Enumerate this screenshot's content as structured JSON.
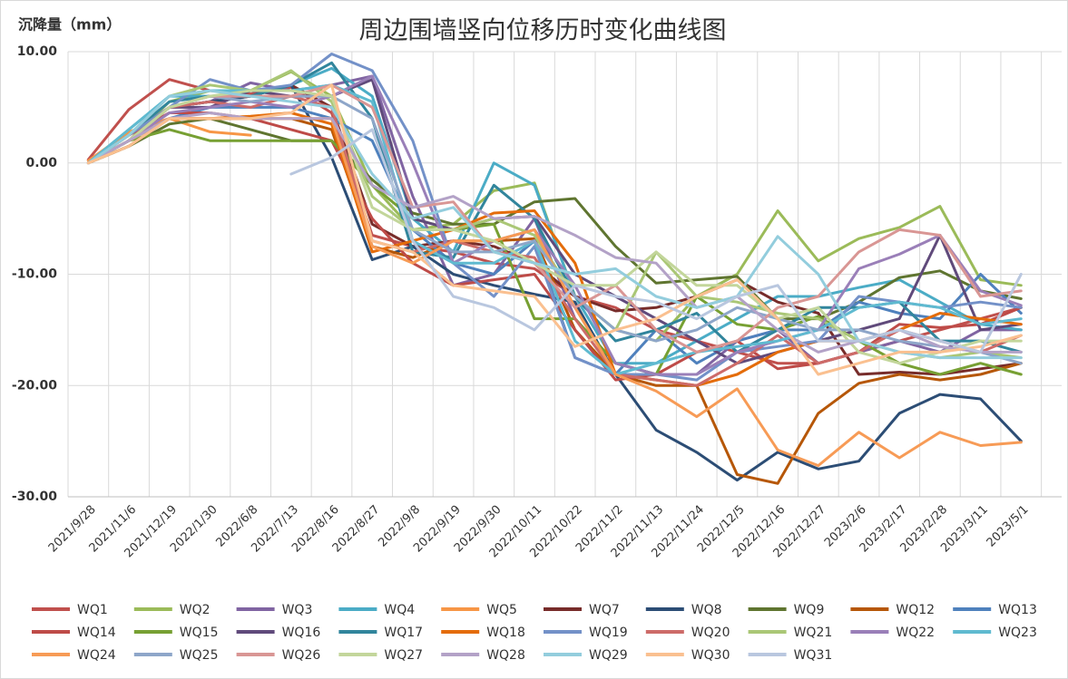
{
  "chart_data": {
    "type": "line",
    "title": "周边围墙竖向位移历时变化曲线图",
    "y_label": "沉降量（mm）",
    "categories": [
      "2021/9/28",
      "2021/11/6",
      "2021/12/19",
      "2022/1/30",
      "2022/6/8",
      "2022/7/13",
      "2022/8/16",
      "2022/8/27",
      "2022/9/8",
      "2022/9/19",
      "2022/9/30",
      "2022/10/11",
      "2022/10/22",
      "2022/11/2",
      "2022/11/13",
      "2022/11/24",
      "2022/12/5",
      "2022/12/16",
      "2022/12/27",
      "2023/2/6",
      "2023/2/17",
      "2023/2/28",
      "2023/3/11",
      "2023/5/1"
    ],
    "ylim": [
      -30,
      10
    ],
    "yticks": [
      {
        "value": -30,
        "label": "-30.00"
      },
      {
        "value": -20,
        "label": "-20.00"
      },
      {
        "value": -10,
        "label": "-10.00"
      },
      {
        "value": 0,
        "label": "0.00"
      },
      {
        "value": 10,
        "label": "10.00"
      }
    ],
    "grid": true,
    "legend": "bottom",
    "series": [
      {
        "name": "WQ1",
        "color": "#c0504d",
        "values": [
          0.3,
          4.8,
          7.5,
          6.5,
          6.2,
          6.8,
          4.5,
          -6.5,
          -7.5,
          -8,
          -9,
          -9.5,
          -12,
          -13,
          -15,
          -16,
          -17,
          -18,
          -18,
          -17,
          -16,
          -15,
          -14,
          -13
        ]
      },
      {
        "name": "WQ2",
        "color": "#9bbb59",
        "values": [
          0,
          2,
          5.5,
          6.5,
          6.5,
          8.2,
          6,
          -2,
          -6,
          -5.5,
          -2.5,
          -1.8,
          -12,
          -15,
          -16,
          -12,
          -10,
          -4.3,
          -8.8,
          -6.8,
          -5.8,
          -3.9,
          -10.5,
          -11
        ]
      },
      {
        "name": "WQ3",
        "color": "#8064a2",
        "values": [
          0,
          2.5,
          5,
          5.5,
          7.2,
          6.5,
          7,
          7.8,
          -3,
          -11,
          -10,
          -5,
          -14,
          -18,
          -19,
          -19,
          -16,
          -15,
          -18,
          -17,
          -16,
          -17,
          -15,
          -15
        ]
      },
      {
        "name": "WQ4",
        "color": "#4bacc6",
        "values": [
          0,
          3,
          6,
          6,
          6,
          7,
          8.5,
          6,
          -5,
          -8,
          0,
          -2,
          -12,
          -18,
          -18,
          -16,
          -14,
          -12,
          -12,
          -11.2,
          -10.5,
          -12.5,
          -14.5,
          -15
        ]
      },
      {
        "name": "WQ5",
        "color": "#f79646",
        "values": [
          0.2,
          2.8,
          4,
          2.8,
          2.5,
          null,
          null,
          null,
          null,
          null,
          null,
          null,
          null,
          null,
          null,
          null,
          null,
          null,
          null,
          null,
          null,
          null,
          null,
          null
        ]
      },
      {
        "name": "WQ7",
        "color": "#772c2a",
        "values": [
          0,
          2,
          5,
          5.5,
          6,
          7,
          5,
          -5.5,
          -7.5,
          -7,
          -7.5,
          -9,
          -12,
          -13.3,
          -13,
          -12,
          -10.5,
          -12.5,
          -13.5,
          -19,
          -18.8,
          -19,
          -18.5,
          -18
        ]
      },
      {
        "name": "WQ8",
        "color": "#2c4d75",
        "values": [
          0,
          2,
          5,
          5.5,
          6,
          7,
          0.5,
          -8.7,
          -7.5,
          -10,
          -11,
          -11.8,
          -12.5,
          -19,
          -24,
          -26,
          -28.5,
          -26,
          -27.5,
          -26.8,
          -22.5,
          -20.8,
          -21.2,
          -25
        ]
      },
      {
        "name": "WQ9",
        "color": "#5f7530",
        "values": [
          0,
          1.5,
          3.5,
          4,
          3,
          2,
          2,
          -1.5,
          -4.5,
          -5.5,
          -5.5,
          -3.5,
          -3.2,
          -7.5,
          -10.8,
          -10.5,
          -10.2,
          -14,
          -14,
          -12.5,
          -10.3,
          -9.7,
          -11.5,
          -12.2
        ]
      },
      {
        "name": "WQ12",
        "color": "#b65708",
        "values": [
          0,
          1.5,
          4,
          4,
          4,
          4,
          3,
          -7.5,
          -8.5,
          -7,
          -7,
          -6.8,
          -15,
          -19,
          -20,
          -20,
          -28,
          -28.8,
          -22.5,
          -19.8,
          -19,
          -19.5,
          -19,
          -18
        ]
      },
      {
        "name": "WQ13",
        "color": "#4f81bd",
        "values": [
          0,
          2,
          4,
          5,
          5,
          5,
          4,
          2,
          -6,
          -9,
          -10,
          -7,
          -17.5,
          -19,
          -15,
          -18,
          -16,
          -15,
          -15,
          -12.5,
          -13.5,
          -14,
          -10,
          -13.5
        ]
      },
      {
        "name": "WQ14",
        "color": "#be4b48",
        "values": [
          0,
          2.5,
          4.5,
          4.5,
          4,
          3,
          2,
          -5,
          -9,
          -11,
          -10.5,
          -10,
          -15,
          -19.5,
          -19,
          -17,
          -16,
          -18.5,
          -18,
          -17,
          -14.5,
          -14.8,
          -14.5,
          -13
        ]
      },
      {
        "name": "WQ15",
        "color": "#77a033",
        "values": [
          0,
          2,
          3,
          2,
          2,
          2,
          2,
          -2,
          -5,
          -6,
          -5.5,
          -14,
          -14,
          -18,
          -19,
          -12,
          -14.5,
          -15,
          -13.8,
          -16,
          -18,
          -19,
          -18,
          -19
        ]
      },
      {
        "name": "WQ16",
        "color": "#604a7b",
        "values": [
          0,
          2,
          5,
          5,
          6.5,
          6,
          6,
          7.5,
          -5,
          -6,
          -5,
          -4.8,
          -10,
          -12,
          -14,
          -16,
          -18,
          -17,
          -16,
          -15,
          -14,
          -6.5,
          -15,
          -14.5
        ]
      },
      {
        "name": "WQ17",
        "color": "#31859c",
        "values": [
          0,
          2.5,
          5.5,
          6,
          6,
          7,
          9,
          4,
          -8,
          -8.5,
          -2,
          -5,
          -12,
          -16,
          -15,
          -13.5,
          -17,
          -15,
          -13,
          -13,
          -12.5,
          -16,
          -16,
          -17
        ]
      },
      {
        "name": "WQ18",
        "color": "#e46c0a",
        "values": [
          0,
          2,
          4,
          4,
          4.2,
          4.5,
          3.5,
          -8,
          -7,
          -6,
          -4.5,
          -4.3,
          -9,
          -19,
          -19.5,
          -20,
          -19,
          -17,
          -16,
          -16,
          -15,
          -13.5,
          -14,
          -14.5
        ]
      },
      {
        "name": "WQ19",
        "color": "#7391c8",
        "values": [
          0,
          2.5,
          5,
          7.5,
          6.5,
          7,
          9.8,
          8.3,
          2,
          -9,
          -12,
          -7.5,
          -17.5,
          -19,
          -19,
          -19.5,
          -17,
          -16.5,
          -16,
          -12,
          -12.5,
          -13,
          -12.5,
          -13
        ]
      },
      {
        "name": "WQ20",
        "color": "#cd6b68",
        "values": [
          0,
          2,
          5,
          5.5,
          5,
          6,
          5,
          -7,
          -8,
          -7,
          -8,
          -8.5,
          -14,
          -19,
          -19.5,
          -20,
          -18,
          -15.5,
          -18,
          -17,
          -15,
          -16,
          -17,
          -15.5
        ]
      },
      {
        "name": "WQ21",
        "color": "#aac776",
        "values": [
          0,
          2.5,
          6,
          7,
          6.5,
          8.3,
          5.5,
          -3,
          -6,
          -6,
          -5,
          -6.5,
          -12,
          -15,
          -8,
          -12,
          -12.5,
          -13.5,
          -14,
          -16,
          -17,
          -17.5,
          -17,
          -17.5
        ]
      },
      {
        "name": "WQ22",
        "color": "#9a7fb8",
        "values": [
          0,
          2,
          4.5,
          5,
          5.5,
          5,
          6,
          7.8,
          0,
          -9,
          -7,
          -6,
          -11,
          -18,
          -19,
          -19,
          -17,
          -16,
          -15,
          -9.5,
          -8.2,
          -6.5,
          -11.5,
          -12.8
        ]
      },
      {
        "name": "WQ23",
        "color": "#5fbad0",
        "values": [
          0,
          3,
          6,
          6.5,
          6.5,
          6.5,
          7,
          5.5,
          -7,
          -9,
          -9,
          -7,
          -16,
          -19,
          -18,
          -17,
          -16.5,
          -16,
          -15,
          -13,
          -12.5,
          -13,
          -14.5,
          -14
        ]
      },
      {
        "name": "WQ24",
        "color": "#f79b56",
        "values": [
          0,
          2,
          4,
          4,
          4,
          4,
          4,
          -7.5,
          -9,
          -7,
          -7,
          -6,
          -13,
          -19,
          -20.5,
          -22.8,
          -20.3,
          -25.8,
          -27.2,
          -24.2,
          -26.5,
          -24.2,
          -25.4,
          -25.1
        ]
      },
      {
        "name": "WQ25",
        "color": "#8ea6c9",
        "values": [
          0,
          2,
          5,
          6,
          5.5,
          6,
          6,
          4,
          -6,
          -8,
          -8,
          -7,
          -12,
          -15,
          -16,
          -15,
          -13,
          -14,
          -15,
          -15,
          -16,
          -16.5,
          -17,
          -18
        ]
      },
      {
        "name": "WQ26",
        "color": "#d99694",
        "values": [
          0,
          2,
          5,
          6,
          6,
          6,
          7,
          5,
          -4,
          -3.5,
          -8,
          -9,
          -13,
          -11,
          -15,
          -17,
          -16,
          -13,
          -12,
          -8,
          -6,
          -6.5,
          -12,
          -11.5
        ]
      },
      {
        "name": "WQ27",
        "color": "#c3d69b",
        "values": [
          0,
          2,
          5,
          6,
          6.5,
          6.5,
          6,
          -4,
          -6,
          -6,
          -7,
          -9,
          -11,
          -11,
          -8,
          -11,
          -11,
          -14,
          -13,
          -17,
          -18,
          -17,
          -16,
          -16
        ]
      },
      {
        "name": "WQ28",
        "color": "#b3a2c7",
        "values": [
          0,
          2,
          4,
          4.5,
          4,
          4,
          4,
          -2,
          -4,
          -3,
          -5,
          -4.8,
          -6.5,
          -8.5,
          -9,
          -13,
          -12,
          -15,
          -17,
          -16,
          -15,
          -16.5,
          -17,
          -17
        ]
      },
      {
        "name": "WQ29",
        "color": "#93cddd",
        "values": [
          0,
          2.5,
          6,
          6.5,
          6,
          5.5,
          5,
          -1,
          -5,
          -4,
          -8,
          -9,
          -10,
          -9.5,
          -12,
          -13,
          -12,
          -6.6,
          -10,
          -16,
          -17,
          -17.5,
          -17.5,
          -17.5
        ]
      },
      {
        "name": "WQ30",
        "color": "#fac090",
        "values": [
          0,
          1.5,
          4,
          4,
          4,
          4.5,
          7,
          -7,
          -8,
          -11,
          -11.5,
          -12,
          -16.5,
          -15,
          -14,
          -12,
          -10.5,
          -14,
          -19,
          -18,
          -17,
          -17,
          -16.5,
          -15.5
        ]
      },
      {
        "name": "WQ31",
        "color": "#b9c7df",
        "values": [
          null,
          null,
          null,
          null,
          null,
          -1,
          0.5,
          3,
          -7,
          -12,
          -13,
          -15,
          -11,
          -12,
          -12.5,
          -14,
          -12,
          -11,
          -16,
          -16,
          -15,
          -16,
          -17,
          -10
        ]
      }
    ]
  }
}
